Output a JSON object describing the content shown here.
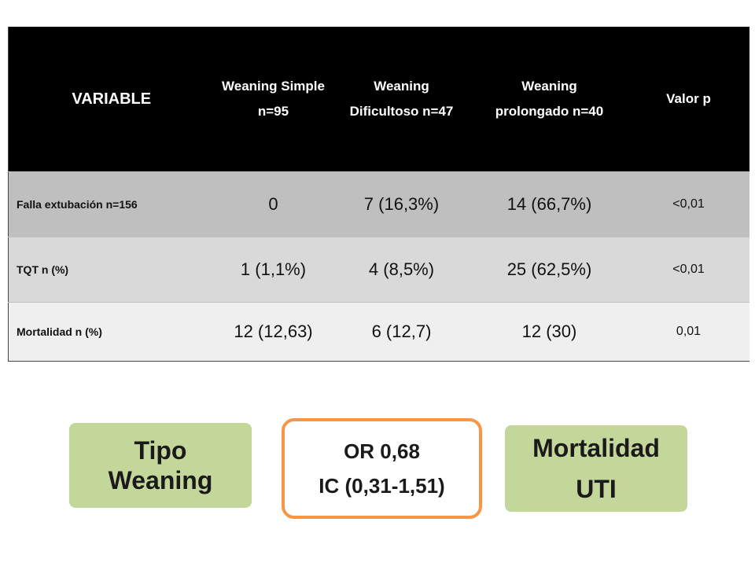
{
  "table": {
    "headers": {
      "variable": "VARIABLE",
      "simple_1": "Weaning Simple",
      "simple_2": "n=95",
      "dificultoso_1": "Weaning",
      "dificultoso_2": "Dificultoso n=47",
      "prolongado_1": "Weaning",
      "prolongado_2": "prolongado n=40",
      "p": "Valor p"
    },
    "rows": [
      {
        "label": "Falla extubación n=156",
        "simple": "0",
        "dificultoso": "7 (16,3%)",
        "prolongado": "14 (66,7%)",
        "p": "<0,01"
      },
      {
        "label": "TQT  n (%)",
        "simple": "1 (1,1%)",
        "dificultoso": "4 (8,5%)",
        "prolongado": "25 (62,5%)",
        "p": "<0,01"
      },
      {
        "label": "Mortalidad  n (%)",
        "simple": "12 (12,63)",
        "dificultoso": "6 (12,7)",
        "prolongado": "12 (30)",
        "p": "0,01"
      }
    ]
  },
  "boxes": {
    "tipo_1": "Tipo",
    "tipo_2": "Weaning",
    "or": "OR 0,68",
    "ic": "IC (0,31-1,51)",
    "mort_1": "Mortalidad",
    "mort_2": "UTI"
  },
  "colors": {
    "header_bg": "#000000",
    "row1_bg": "#bfbfbf",
    "row2_bg": "#d9d9d9",
    "row3_bg": "#efefef",
    "green_box": "#c4d79b",
    "orange_border": "#f79646"
  }
}
